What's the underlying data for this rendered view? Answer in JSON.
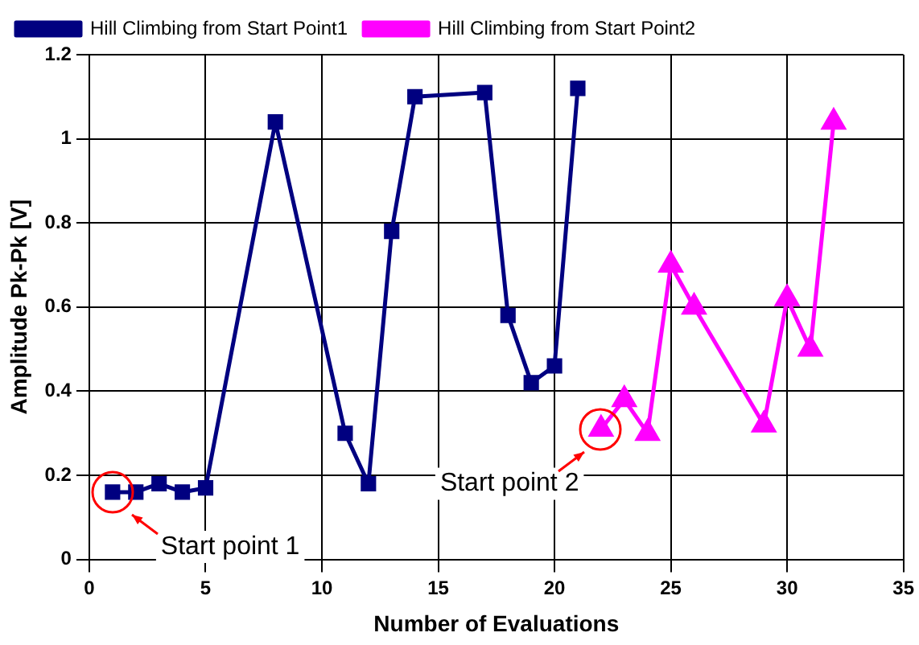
{
  "chart_data": {
    "type": "line",
    "xlabel": "Number of Evaluations",
    "ylabel": "Amplitude Pk-Pk [V]",
    "series": [
      {
        "name": "Hill Climbing from Start Point1",
        "color": "#000080",
        "marker": "square",
        "x": [
          1,
          2,
          3,
          4,
          5,
          8,
          11,
          12,
          13,
          14,
          17,
          18,
          19,
          20,
          21
        ],
        "values": [
          0.16,
          0.16,
          0.18,
          0.16,
          0.17,
          1.04,
          0.3,
          0.18,
          0.78,
          1.1,
          1.11,
          0.58,
          0.42,
          0.46,
          1.12
        ]
      },
      {
        "name": "Hill Climbing from Start Point2",
        "color": "#ff00ff",
        "marker": "triangle",
        "x": [
          22,
          23,
          24,
          25,
          26,
          29,
          30,
          31,
          32
        ],
        "values": [
          0.31,
          0.38,
          0.3,
          0.7,
          0.6,
          0.32,
          0.62,
          0.5,
          1.04
        ]
      }
    ],
    "xlim": [
      0,
      35
    ],
    "xticks": [
      0,
      5,
      10,
      15,
      20,
      25,
      30,
      35
    ],
    "ylim": [
      0,
      1.2
    ],
    "yticks": [
      0,
      0.2,
      0.4,
      0.6,
      0.8,
      1,
      1.2
    ],
    "grid": true,
    "legend": "top left",
    "annotations": [
      {
        "text": "Start point 1",
        "x": 1,
        "y": 0.16
      },
      {
        "text": "Start point 2",
        "x": 22,
        "y": 0.31
      }
    ]
  }
}
